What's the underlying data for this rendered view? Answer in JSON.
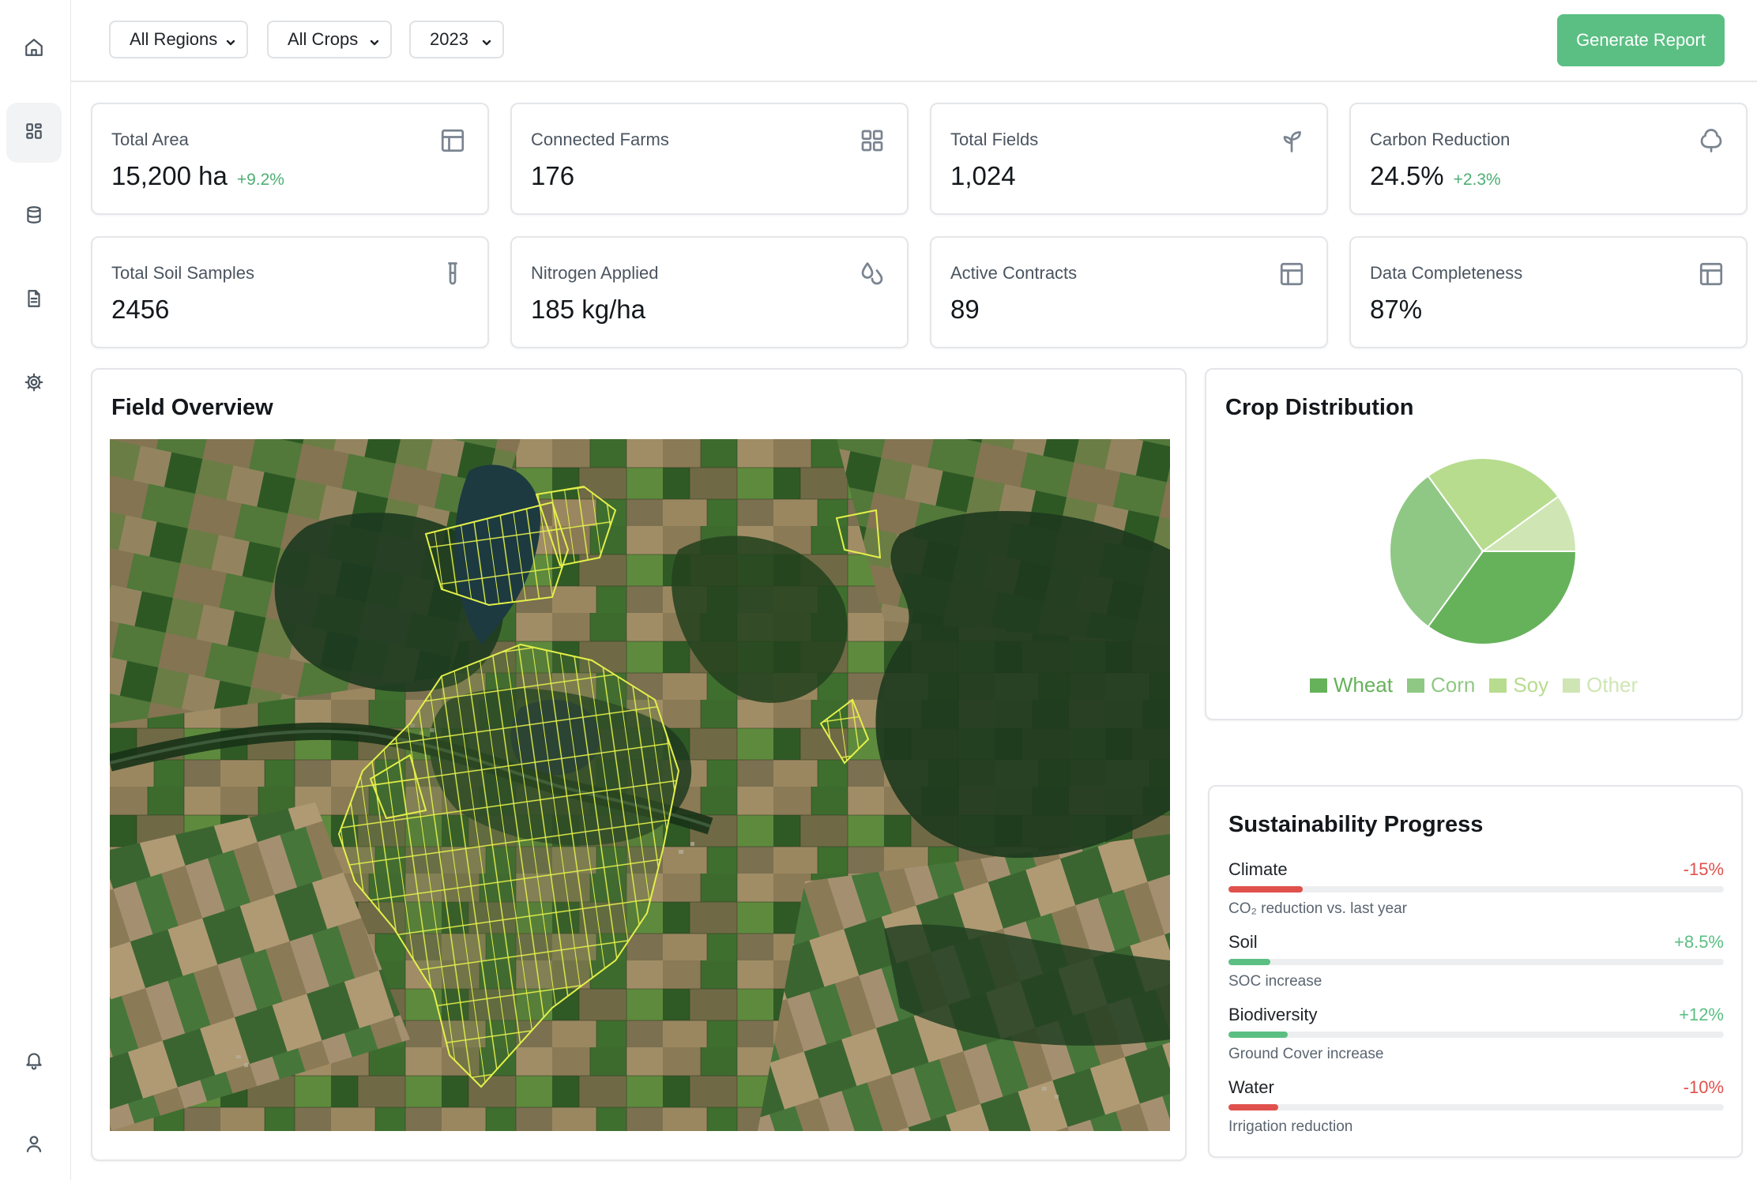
{
  "sidebar": {
    "items": [
      {
        "icon": "home-icon"
      },
      {
        "icon": "dashboard-icon",
        "active": true
      },
      {
        "icon": "database-icon"
      },
      {
        "icon": "document-icon"
      },
      {
        "icon": "gear-icon"
      }
    ],
    "bottom": [
      {
        "icon": "bell-icon"
      },
      {
        "icon": "user-icon"
      }
    ]
  },
  "filters": {
    "region": "All Regions",
    "crop": "All Crops",
    "year": "2023"
  },
  "actions": {
    "generate_report": "Generate Report"
  },
  "stats": [
    {
      "label": "Total Area",
      "value": "15,200 ha",
      "delta": "+9.2%",
      "icon": "layout-icon"
    },
    {
      "label": "Connected Farms",
      "value": "176",
      "delta": "",
      "icon": "grid-icon"
    },
    {
      "label": "Total Fields",
      "value": "1,024",
      "delta": "",
      "icon": "sprout-icon"
    },
    {
      "label": "Carbon Reduction",
      "value": "24.5%",
      "delta": "+2.3%",
      "icon": "tree-icon"
    },
    {
      "label": "Total Soil Samples",
      "value": "2456",
      "delta": "",
      "icon": "test-tube-icon"
    },
    {
      "label": "Nitrogen Applied",
      "value": "185 kg/ha",
      "delta": "",
      "icon": "droplets-icon"
    },
    {
      "label": "Active Contracts",
      "value": "89",
      "delta": "",
      "icon": "layout-icon"
    },
    {
      "label": "Data Completeness",
      "value": "87%",
      "delta": "",
      "icon": "layout-icon"
    }
  ],
  "field_overview": {
    "title": "Field Overview"
  },
  "crop_distribution": {
    "title": "Crop Distribution"
  },
  "chart_data": {
    "type": "pie",
    "title": "Crop Distribution",
    "categories": [
      "Wheat",
      "Corn",
      "Soy",
      "Other"
    ],
    "values": [
      35,
      30,
      25,
      10
    ],
    "colors": [
      "#66b25a",
      "#8fc884",
      "#b7dc8e",
      "#cfe6b4"
    ],
    "legend": "bottom"
  },
  "sustainability": {
    "title": "Sustainability Progress",
    "metrics": [
      {
        "name": "Climate",
        "value": "-15%",
        "desc": "CO₂ reduction vs. last year",
        "fraction": 0.15,
        "color": "#e0514d"
      },
      {
        "name": "Soil",
        "value": "+8.5%",
        "desc": "SOC increase",
        "fraction": 0.085,
        "color": "#5bbf83"
      },
      {
        "name": "Biodiversity",
        "value": "+12%",
        "desc": "Ground Cover increase",
        "fraction": 0.12,
        "color": "#5bbf83"
      },
      {
        "name": "Water",
        "value": "-10%",
        "desc": "Irrigation reduction",
        "fraction": 0.1,
        "color": "#e0514d"
      }
    ]
  }
}
